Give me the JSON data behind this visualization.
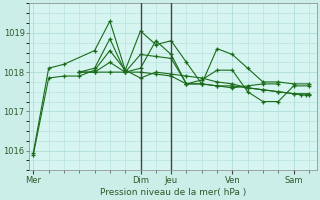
{
  "background_color": "#cceee8",
  "plot_bg_color": "#d6f5f0",
  "grid_color": "#b0ddd8",
  "line_color": "#1a6b1a",
  "marker": "+",
  "marker_size": 3.5,
  "ylabel": "Pression niveau de la mer( hPa )",
  "yticks": [
    1016,
    1017,
    1018,
    1019
  ],
  "ylim": [
    1015.5,
    1019.75
  ],
  "xtick_labels": [
    "Mer",
    "Dim",
    "Jeu",
    "Ven",
    "Sam"
  ],
  "series": [
    [
      1015.9,
      1017.85,
      1017.9,
      1017.9,
      1018.05,
      1018.55,
      1018.05,
      1017.85,
      1018.0,
      1017.95,
      1017.9,
      1017.85,
      1017.75,
      1017.7,
      1017.6,
      1017.55,
      1017.5,
      1017.45,
      1017.45
    ],
    [
      1015.95,
      1018.1,
      1018.2,
      1018.55,
      1019.3,
      1018.05,
      1019.05,
      1018.7,
      1018.8,
      1018.25,
      1017.7,
      1018.6,
      1018.45,
      1018.1,
      1017.75,
      1017.75,
      1017.7,
      1017.7
    ],
    [
      1018.0,
      1018.0,
      1018.25,
      1018.0,
      1018.45,
      1018.4,
      1018.35,
      1017.7,
      1017.7,
      1017.65,
      1017.6,
      1017.65,
      1017.7,
      1017.7
    ],
    [
      1018.0,
      1018.1,
      1018.85,
      1018.0,
      1018.1,
      1018.8,
      1018.45,
      1017.7,
      1017.8,
      1018.05,
      1018.05,
      1017.5,
      1017.25,
      1017.25,
      1017.65,
      1017.65
    ],
    [
      1018.0,
      1018.0,
      1018.0,
      1018.0,
      1018.0,
      1017.95,
      1017.9,
      1017.7,
      1017.7,
      1017.65,
      1017.65,
      1017.6,
      1017.55,
      1017.5,
      1017.45,
      1017.42,
      1017.42,
      1017.42
    ]
  ],
  "series_x": [
    [
      0,
      1,
      2,
      3,
      4,
      5,
      6,
      7,
      8,
      9,
      10,
      11,
      12,
      13,
      14,
      15,
      16,
      17,
      18
    ],
    [
      0,
      1,
      2,
      4,
      5,
      6,
      7,
      8,
      9,
      10,
      11,
      12,
      13,
      14,
      15,
      16,
      17,
      18
    ],
    [
      3,
      4,
      5,
      6,
      7,
      8,
      9,
      10,
      11,
      12,
      13,
      14,
      15,
      16
    ],
    [
      3,
      4,
      5,
      6,
      7,
      8,
      9,
      10,
      11,
      12,
      13,
      14,
      15,
      16,
      17,
      18
    ],
    [
      3,
      4,
      5,
      6,
      7,
      8,
      9,
      10,
      11,
      12,
      13,
      14,
      15,
      16,
      17,
      17.5,
      17.8,
      18
    ]
  ],
  "vline_x": [
    7,
    9
  ],
  "vline_color": "#444444",
  "tick_label_positions": [
    0,
    7,
    9,
    13,
    17
  ],
  "tick_label_names": [
    "Mer",
    "Dim",
    "Jeu",
    "Ven",
    "Sam"
  ],
  "xlim": [
    -0.3,
    18.5
  ]
}
